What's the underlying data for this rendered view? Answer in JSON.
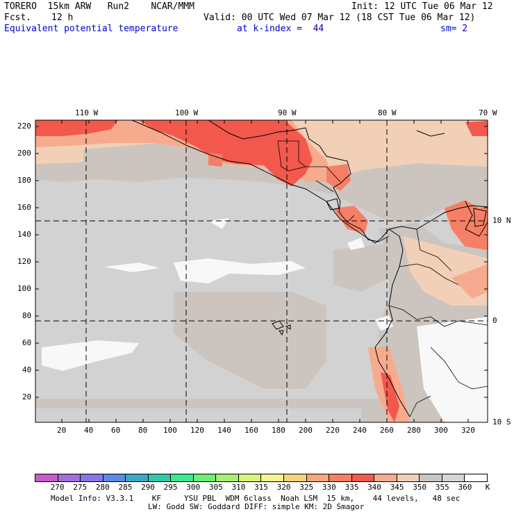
{
  "header": {
    "model": "TORERO  15km ARW   Run2    NCAR/MMM",
    "init": "Init: 12 UTC Tue 06 Mar 12",
    "fcst_label": "Fcst.",
    "fcst_value": "12 h",
    "valid": "Valid: 00 UTC Wed 07 Mar 12 (18 CST Tue 06 Mar 12)",
    "field": "Equivalent potential temperature",
    "level": "at k-index =  44",
    "smoothing": "sm= 2"
  },
  "map": {
    "lon_labels": [
      "110 W",
      "100 W",
      "90 W",
      "80 W",
      "70 W"
    ],
    "lat_labels": [
      "10 N",
      "0",
      "10 S"
    ],
    "y_ticks": [
      "220",
      "200",
      "180",
      "160",
      "140",
      "120",
      "100",
      "80",
      "60",
      "40",
      "20"
    ],
    "x_ticks": [
      "20",
      "40",
      "60",
      "80",
      "100",
      "120",
      "140",
      "160",
      "180",
      "200",
      "220",
      "240",
      "260",
      "280",
      "300",
      "320"
    ],
    "colors": {
      "grey_light": "#d2d2d2",
      "grey_warm": "#ccc5bf",
      "tan_light": "#f2d0b8",
      "tan": "#eec0a4",
      "salmon": "#f6ab8e",
      "orange_red": "#f57f66",
      "red": "#f2584c",
      "white_patch": "#f8f8f8"
    }
  },
  "colorbar": {
    "labels": [
      "270",
      "275",
      "280",
      "285",
      "290",
      "295",
      "300",
      "305",
      "310",
      "315",
      "320",
      "325",
      "330",
      "335",
      "340",
      "345",
      "350",
      "355",
      "360"
    ],
    "unit": "K",
    "colors": [
      "#cc5ac9",
      "#a070d6",
      "#8476e6",
      "#5a8ae8",
      "#3aa8c8",
      "#2fc8a8",
      "#3ce890",
      "#6eee74",
      "#a6f070",
      "#d8f478",
      "#f6f294",
      "#f6d47a",
      "#f6a878",
      "#f67e66",
      "#f2584c",
      "#f6ab8e",
      "#f2d0b8",
      "#ccc5bf",
      "#d6d6d6",
      "#ffffff"
    ]
  },
  "footer": {
    "line1": "Model Info: V3.3.1    KF     YSU PBL  WDM 6class  Noah LSM  15 km,    44 levels,   48 sec",
    "line2": "LW: Godd SW: Goddard DIFF: simple KM: 2D Smagor"
  }
}
